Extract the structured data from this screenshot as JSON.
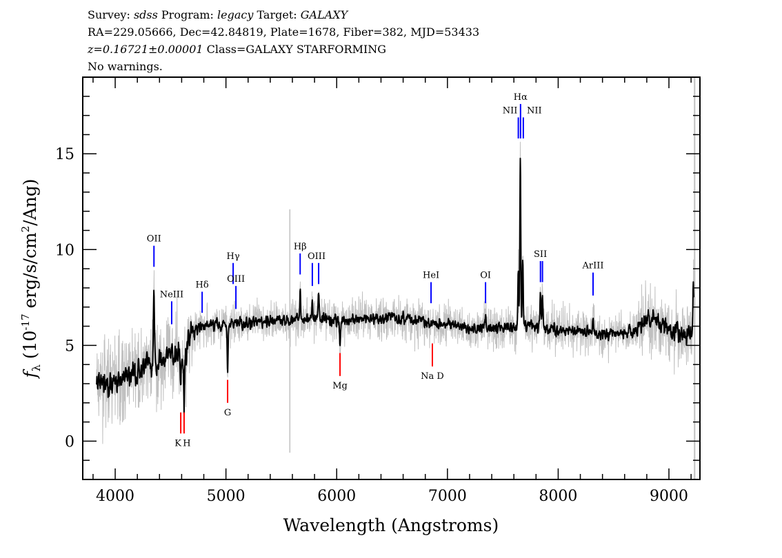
{
  "header": {
    "line1": {
      "survey_label": "Survey: ",
      "survey": "sdss",
      "program_label": " Program: ",
      "program": "legacy",
      "target_label": " Target: ",
      "target": "GALAXY"
    },
    "line2": "RA=229.05666, Dec=42.84819, Plate=1678, Fiber=382, MJD=53433",
    "line3": {
      "redshift": "z=0.16721±0.00001",
      "class": " Class=GALAXY STARFORMING"
    },
    "line4": "No warnings."
  },
  "chart_data": {
    "type": "line",
    "title": "",
    "xlabel": "Wavelength (Angstroms)",
    "ylabel": "f_λ (10^-17 erg/s/cm^2/Ang)",
    "ylabel_parts": {
      "f": "f",
      "sub": "λ",
      "pre": " (10",
      "exp": "-17",
      "mid": " erg/s/cm",
      "exp2": "2",
      "post": "/Ang)"
    },
    "xlim": [
      3707,
      9280
    ],
    "ylim": [
      -2,
      19
    ],
    "xticks": [
      4000,
      5000,
      6000,
      7000,
      8000,
      9000
    ],
    "yticks": [
      0,
      5,
      10,
      15
    ],
    "colors": {
      "flux": "#000000",
      "error": "#c0c0c0",
      "emission": "#0000ff",
      "absorption": "#ff0000"
    },
    "continuum": [
      [
        3830,
        3.0
      ],
      [
        3900,
        2.9
      ],
      [
        4000,
        3.2
      ],
      [
        4100,
        3.4
      ],
      [
        4200,
        3.6
      ],
      [
        4300,
        3.9
      ],
      [
        4400,
        4.2
      ],
      [
        4500,
        4.4
      ],
      [
        4600,
        4.6
      ],
      [
        4640,
        4.2
      ],
      [
        4660,
        5.6
      ],
      [
        4800,
        6.0
      ],
      [
        5000,
        6.1
      ],
      [
        5200,
        6.2
      ],
      [
        5500,
        6.3
      ],
      [
        5800,
        6.4
      ],
      [
        6000,
        6.3
      ],
      [
        6300,
        6.4
      ],
      [
        6600,
        6.4
      ],
      [
        6900,
        6.2
      ],
      [
        7200,
        5.9
      ],
      [
        7500,
        5.9
      ],
      [
        7600,
        6.0
      ],
      [
        7800,
        6.0
      ],
      [
        8000,
        5.8
      ],
      [
        8300,
        5.7
      ],
      [
        8500,
        5.6
      ],
      [
        8700,
        5.8
      ],
      [
        8800,
        6.4
      ],
      [
        8900,
        6.1
      ],
      [
        9000,
        5.8
      ],
      [
        9100,
        5.6
      ],
      [
        9230,
        5.5
      ]
    ],
    "features": [
      [
        4350,
        8.6
      ],
      [
        4510,
        5.2
      ],
      [
        4592,
        2.8
      ],
      [
        4622,
        1.8
      ],
      [
        5015,
        3.5
      ],
      [
        5670,
        8.2
      ],
      [
        5780,
        7.6
      ],
      [
        5837,
        8.0
      ],
      [
        6030,
        5.0
      ],
      [
        7344,
        6.8
      ],
      [
        7640,
        9.0
      ],
      [
        7658,
        15.7
      ],
      [
        7680,
        9.8
      ],
      [
        7840,
        8.0
      ],
      [
        7858,
        7.5
      ],
      [
        8315,
        6.3
      ],
      [
        9220,
        8.7
      ]
    ],
    "sky_line": {
      "wavelength": 5577,
      "top": 12.1
    },
    "lines": [
      {
        "name": "OII",
        "wavelength": 4350,
        "kind": "emission",
        "marker": [
          9.1,
          10.2
        ],
        "label": "OII"
      },
      {
        "name": "NeIII",
        "wavelength": 4510,
        "kind": "emission",
        "marker": [
          6.1,
          7.3
        ],
        "label": "NeIII"
      },
      {
        "name": "Hdelta",
        "wavelength": 4785,
        "kind": "emission",
        "marker": [
          6.7,
          7.8
        ],
        "label": "Hδ"
      },
      {
        "name": "Hgamma",
        "wavelength": 5065,
        "kind": "emission",
        "marker": [
          8.2,
          9.3
        ],
        "label": "Hγ"
      },
      {
        "name": "OIII-4363",
        "wavelength": 5090,
        "kind": "emission",
        "marker": [
          6.9,
          8.1
        ],
        "label": "OIII"
      },
      {
        "name": "Hbeta",
        "wavelength": 5670,
        "kind": "emission",
        "marker": [
          8.7,
          9.8
        ],
        "label": "Hβ"
      },
      {
        "name": "OIII-4959",
        "wavelength": 5780,
        "kind": "emission",
        "marker": [
          8.1,
          9.3
        ],
        "label": ""
      },
      {
        "name": "OIII-5007",
        "wavelength": 5837,
        "kind": "emission",
        "marker": [
          8.2,
          9.3
        ],
        "label": "OIII"
      },
      {
        "name": "HeI",
        "wavelength": 6852,
        "kind": "emission",
        "marker": [
          7.2,
          8.3
        ],
        "label": "HeI"
      },
      {
        "name": "OI",
        "wavelength": 7344,
        "kind": "emission",
        "marker": [
          7.2,
          8.3
        ],
        "label": "OI"
      },
      {
        "name": "NII-6548",
        "wavelength": 7640,
        "kind": "emission",
        "marker": [
          15.8,
          16.9
        ],
        "label": "NII"
      },
      {
        "name": "Halpha",
        "wavelength": 7660,
        "kind": "emission",
        "marker": [
          15.8,
          17.6
        ],
        "label": "Hα"
      },
      {
        "name": "NII-6583",
        "wavelength": 7685,
        "kind": "emission",
        "marker": [
          15.8,
          16.9
        ],
        "label": "NII"
      },
      {
        "name": "SII-6716",
        "wavelength": 7840,
        "kind": "emission",
        "marker": [
          8.3,
          9.4
        ],
        "label": ""
      },
      {
        "name": "SII-6731",
        "wavelength": 7858,
        "kind": "emission",
        "marker": [
          8.3,
          9.4
        ],
        "label": "SII"
      },
      {
        "name": "ArIII",
        "wavelength": 8315,
        "kind": "emission",
        "marker": [
          7.6,
          8.8
        ],
        "label": "ArIII"
      },
      {
        "name": "K",
        "wavelength": 4592,
        "kind": "absorption",
        "marker": [
          0.4,
          1.5
        ],
        "label": "K"
      },
      {
        "name": "H",
        "wavelength": 4622,
        "kind": "absorption",
        "marker": [
          0.4,
          1.5
        ],
        "label": "H"
      },
      {
        "name": "G",
        "wavelength": 5015,
        "kind": "absorption",
        "marker": [
          2.0,
          3.2
        ],
        "label": "G"
      },
      {
        "name": "Mg",
        "wavelength": 6030,
        "kind": "absorption",
        "marker": [
          3.4,
          4.6
        ],
        "label": "Mg"
      },
      {
        "name": "NaD",
        "wavelength": 6864,
        "kind": "absorption",
        "marker": [
          3.9,
          5.1
        ],
        "label": "Na D"
      }
    ]
  }
}
